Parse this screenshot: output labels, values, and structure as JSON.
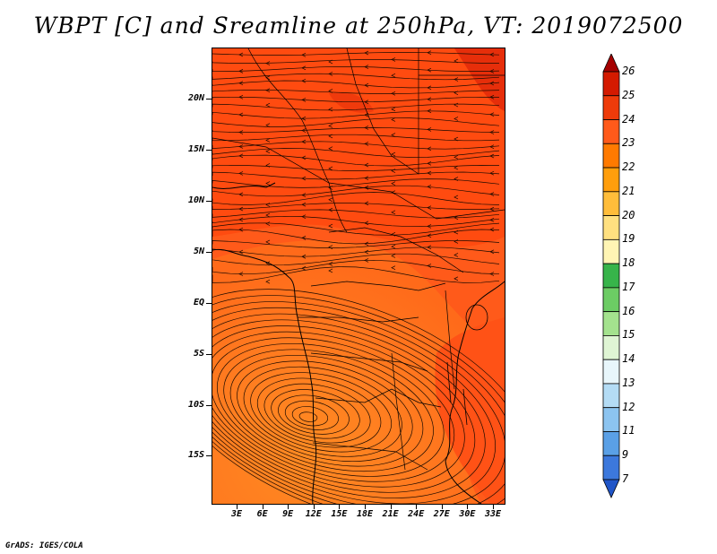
{
  "title": "WBPT [C] and Sreamline at 250hPa, VT: 2019072500",
  "credit": "GrADS: IGES/COLA",
  "map": {
    "type": "filled-contour-streamline",
    "variable": "WBPT",
    "level": "250hPa",
    "lat_labels": [
      "20N",
      "15N",
      "10N",
      "5N",
      "EQ",
      "5S",
      "10S",
      "15S"
    ],
    "lon_labels": [
      "3E",
      "6E",
      "9E",
      "12E",
      "15E",
      "18E",
      "21E",
      "24E",
      "27E",
      "30E",
      "33E"
    ],
    "colors": {
      "background_field": "#ff5a1a",
      "south_field": "#ff7a1f",
      "north_field": "#ff4b10",
      "hot_spot": "#e62e0a",
      "streamline": "#1a0a00",
      "coast": "#000000"
    }
  },
  "colorbar": {
    "labels": [
      "26",
      "25",
      "24",
      "23",
      "22",
      "21",
      "20",
      "19",
      "18",
      "17",
      "16",
      "15",
      "14",
      "13",
      "12",
      "11",
      "9",
      "7"
    ],
    "colors": [
      "#a50000",
      "#d41a00",
      "#ee3b0a",
      "#ff5a1a",
      "#ff7a00",
      "#ff9e0c",
      "#ffbd3a",
      "#ffe080",
      "#fff5b4",
      "#37b44a",
      "#6ccc64",
      "#a4e28e",
      "#dff5d4",
      "#e8f6fb",
      "#b4dcf5",
      "#8cc4f0",
      "#5aa0e6",
      "#3c78dc",
      "#2055c8"
    ]
  }
}
